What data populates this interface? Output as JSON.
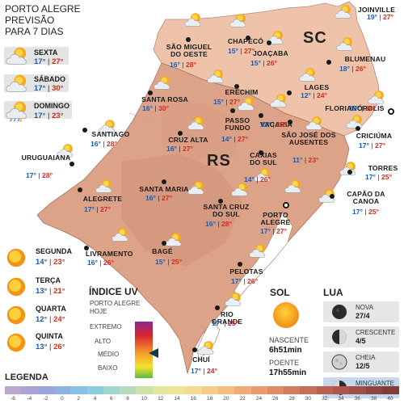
{
  "header": {
    "line1": "PORTO ALEGRE",
    "line2": "PREVISÃO",
    "line3": "PARA 7 DIAS"
  },
  "forecast_days": [
    {
      "day": "SEXTA",
      "min": "17°",
      "max": "27°",
      "icon": "partly-cloudy-icon"
    },
    {
      "day": "SÁBADO",
      "min": "17°",
      "max": "30°",
      "icon": "partly-cloudy-icon"
    },
    {
      "day": "DOMINGO",
      "min": "17°",
      "max": "23°",
      "icon": "storm-icon"
    },
    {
      "day": "SEGUNDA",
      "min": "14°",
      "max": "23°",
      "icon": "sun-icon"
    },
    {
      "day": "TERÇA",
      "min": "13°",
      "max": "21°",
      "icon": "sun-icon"
    },
    {
      "day": "QUARTA",
      "min": "12°",
      "max": "24°",
      "icon": "sun-icon"
    },
    {
      "day": "QUINTA",
      "min": "13°",
      "max": "26°",
      "icon": "sun-icon"
    }
  ],
  "states": {
    "rs": "RS",
    "sc": "SC"
  },
  "cities": [
    {
      "name": "JOINVILLE",
      "min": "19°",
      "max": "27°"
    },
    {
      "name": "SÃO MIGUEL DO OESTE",
      "min": "16°",
      "max": "28°"
    },
    {
      "name": "CHAPECÓ",
      "min": "15°",
      "max": "27°"
    },
    {
      "name": "JOAÇABA",
      "min": "15°",
      "max": "26°"
    },
    {
      "name": "BLUMENAU",
      "min": "18°",
      "max": "26°"
    },
    {
      "name": "LAGES",
      "min": "12°",
      "max": "24°"
    },
    {
      "name": "FLORIANÓPOLIS",
      "min": "19°",
      "max": "26°"
    },
    {
      "name": "SANTA ROSA",
      "min": "16°",
      "max": "30°"
    },
    {
      "name": "ERECHIM",
      "min": "15°",
      "max": "27°"
    },
    {
      "name": "VACARIA",
      "min": "12°",
      "max": "25°"
    },
    {
      "name": "PASSO FUNDO",
      "min": "14°",
      "max": "27°"
    },
    {
      "name": "SÃO JOSÉ DOS AUSENTES",
      "min": "11°",
      "max": "23°"
    },
    {
      "name": "CRICIÚMA",
      "min": "17°",
      "max": "27°"
    },
    {
      "name": "SANTIAGO",
      "min": "16°",
      "max": "28°"
    },
    {
      "name": "CRUZ ALTA",
      "min": "16°",
      "max": "27°"
    },
    {
      "name": "URUGUAIANA",
      "min": "17°",
      "max": "28°"
    },
    {
      "name": "TORRES",
      "min": "17°",
      "max": "25°"
    },
    {
      "name": "CAXIAS DO SUL",
      "min": "14°",
      "max": "26°"
    },
    {
      "name": "SANTA MARIA",
      "min": "16°",
      "max": "27°"
    },
    {
      "name": "ALEGRETE",
      "min": "17°",
      "max": "27°"
    },
    {
      "name": "CAPÃO DA CANOA",
      "min": "17°",
      "max": "25°"
    },
    {
      "name": "SANTA CRUZ DO SUL",
      "min": "16°",
      "max": "28°"
    },
    {
      "name": "PORTO ALEGRE",
      "min": "17°",
      "max": "27°"
    },
    {
      "name": "LIVRAMENTO",
      "min": "16°",
      "max": "26°"
    },
    {
      "name": "BAGÉ",
      "min": "15°",
      "max": "25°"
    },
    {
      "name": "PELOTAS",
      "min": "17°",
      "max": "26°"
    },
    {
      "name": "RIO GRANDE",
      "min": "17°",
      "max": "25°"
    },
    {
      "name": "CHUÍ",
      "min": "17°",
      "max": "24°"
    }
  ],
  "uv": {
    "title": "ÍNDICE UV",
    "subtitle1": "PORTO ALEGRE",
    "subtitle2": "HOJE",
    "levels": [
      "EXTREMO",
      "ALTO",
      "MÉDIO",
      "BAIXO"
    ],
    "current_level": "MÉDIO"
  },
  "sun": {
    "title": "SOL",
    "sunrise_label": "NASCENTE",
    "sunrise": "6h51min",
    "sunset_label": "POENTE",
    "sunset": "17h55min"
  },
  "moon": {
    "title": "LUA",
    "phases": [
      {
        "name": "NOVA",
        "date": "27/4",
        "icon": "new-moon-icon"
      },
      {
        "name": "CRESCENTE",
        "date": "4/5",
        "icon": "first-quarter-moon-icon"
      },
      {
        "name": "CHEIA",
        "date": "12/5",
        "icon": "full-moon-icon"
      },
      {
        "name": "MINGUANTE",
        "date": "20/4",
        "icon": "last-quarter-moon-icon",
        "highlight": true
      }
    ]
  },
  "legend": {
    "title": "LEGENDA",
    "values": [
      "-6",
      "-4",
      "-2",
      "0",
      "2",
      "4",
      "6",
      "8",
      "10",
      "12",
      "14",
      "16",
      "18",
      "20",
      "22",
      "24",
      "26",
      "28",
      "30",
      "32",
      "34",
      "36",
      "38",
      "40"
    ],
    "colors": [
      "#b9a7cf",
      "#a9a3d3",
      "#9aa6dc",
      "#8fb1e2",
      "#88c0e6",
      "#8dcde0",
      "#9fd6cf",
      "#b5ddbd",
      "#cce3a8",
      "#e0e79a",
      "#eee596",
      "#f4db8f",
      "#f5cd88",
      "#f3bd81",
      "#efab78",
      "#e99a70",
      "#e08a67",
      "#d47b5e",
      "#c86d57",
      "#bb6151",
      "#ad574c",
      "#9e4e47",
      "#8e4541",
      "#7e3d3b"
    ]
  },
  "colors": {
    "temp_min": "#1f5aa8",
    "temp_max": "#d42b1e",
    "land_rs": "#dca388",
    "land_sc": "#efc2a8",
    "water": "#ffffff"
  }
}
